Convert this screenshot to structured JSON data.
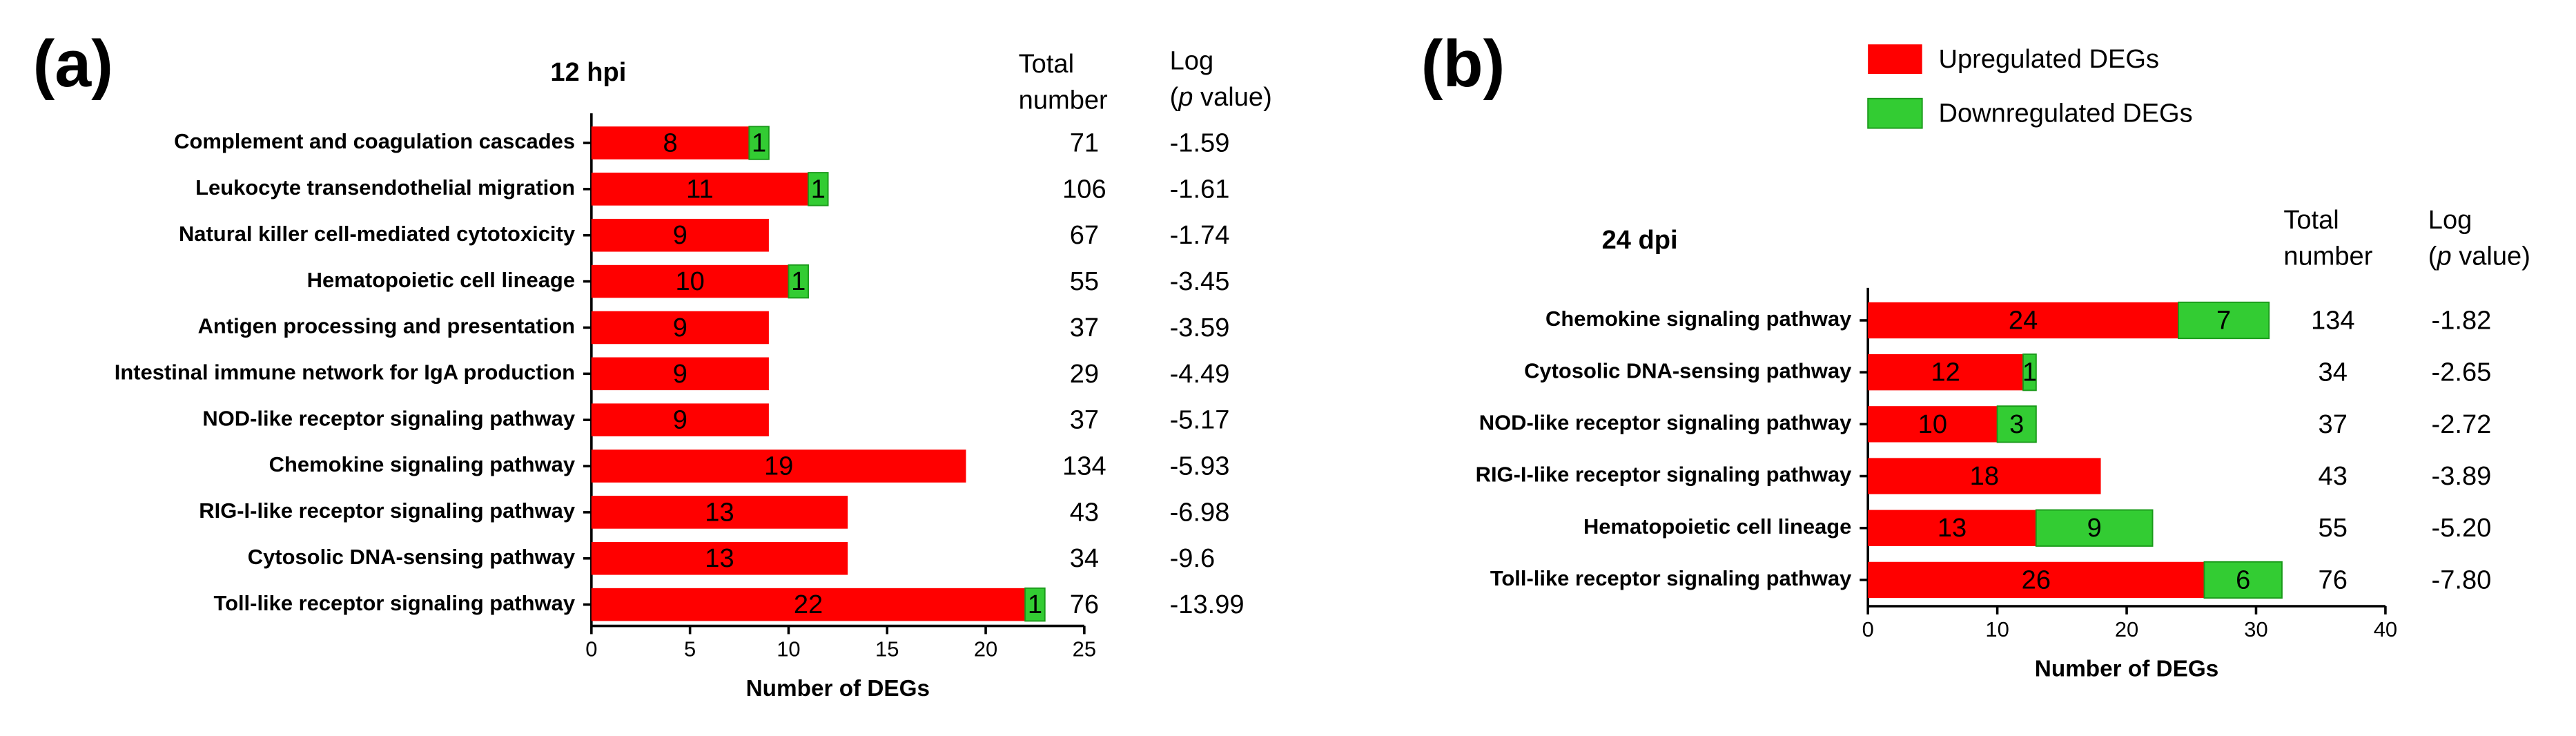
{
  "chart_data": [
    {
      "type": "bar",
      "orientation": "horizontal",
      "stacked": true,
      "panel_label": "(a)",
      "title": "12 hpi",
      "x_label": "Number of DEGs",
      "categories": [
        "Complement and coagulation cascades",
        "Leukocyte transendothelial migration",
        "Natural killer cell-mediated cytotoxicity",
        "Hematopoietic cell lineage",
        "Antigen processing and presentation",
        "Intestinal immune network for IgA production",
        "NOD-like receptor signaling pathway",
        "Chemokine signaling pathway",
        "RIG-I-like receptor signaling pathway",
        "Cytosolic DNA-sensing pathway",
        "Toll-like receptor signaling pathway"
      ],
      "series": [
        {
          "name": "Upregulated DEGs",
          "color": "#ff0000",
          "values": [
            8,
            11,
            9,
            10,
            9,
            9,
            9,
            19,
            13,
            13,
            22
          ]
        },
        {
          "name": "Downregulated DEGs",
          "color": "#33cc33",
          "values": [
            1,
            1,
            null,
            1,
            null,
            null,
            null,
            null,
            null,
            null,
            1
          ]
        }
      ],
      "xlim": [
        0,
        25
      ],
      "xticks": [
        0,
        5,
        10,
        15,
        20,
        25
      ],
      "columns": [
        {
          "header": [
            [
              "Total"
            ],
            [
              "number"
            ]
          ],
          "values": [
            71,
            106,
            67,
            55,
            37,
            29,
            37,
            134,
            43,
            34,
            76
          ]
        },
        {
          "header": [
            [
              "Log"
            ],
            [
              "(",
              "p",
              " value)"
            ]
          ],
          "values": [
            -1.59,
            -1.61,
            -1.74,
            -3.45,
            -3.59,
            -4.49,
            -5.17,
            -5.93,
            -6.98,
            -9.6,
            -13.99
          ]
        }
      ]
    },
    {
      "type": "bar",
      "orientation": "horizontal",
      "stacked": true,
      "panel_label": "(b)",
      "title": "24 dpi",
      "x_label": "Number of DEGs",
      "categories": [
        "Chemokine signaling pathway",
        "Cytosolic DNA-sensing pathway",
        "NOD-like receptor signaling pathway",
        "RIG-I-like receptor signaling pathway",
        "Hematopoietic cell lineage",
        "Toll-like receptor signaling pathway"
      ],
      "series": [
        {
          "name": "Upregulated DEGs",
          "color": "#ff0000",
          "values": [
            24,
            12,
            10,
            18,
            13,
            26
          ]
        },
        {
          "name": "Downregulated DEGs",
          "color": "#33cc33",
          "values": [
            7,
            1,
            3,
            null,
            9,
            6
          ]
        }
      ],
      "xlim": [
        0,
        40
      ],
      "xticks": [
        0,
        10,
        20,
        30,
        40
      ],
      "legend": "top",
      "columns": [
        {
          "header": [
            [
              "Total"
            ],
            [
              "number"
            ]
          ],
          "values": [
            134,
            34,
            37,
            43,
            55,
            76
          ]
        },
        {
          "header": [
            [
              "Log"
            ],
            [
              "(",
              "p",
              " value)"
            ]
          ],
          "values": [
            -1.82,
            -2.65,
            -2.72,
            -3.89,
            -5.2,
            -7.8
          ],
          "value_labels": [
            "-1.82",
            "-2.65",
            "-2.72",
            "-3.89",
            "-5.20",
            "-7.80"
          ]
        }
      ]
    }
  ]
}
